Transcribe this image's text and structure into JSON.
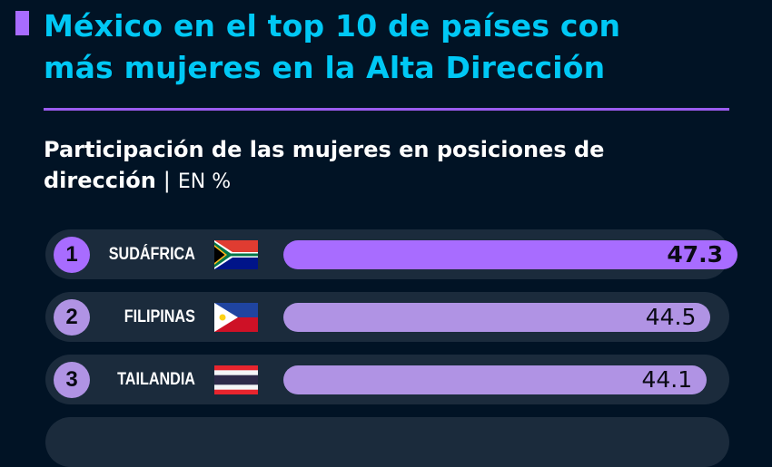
{
  "header": {
    "title_line1": "México en el top 10 de países con",
    "title_line2": "más mujeres en la Alta Dirección",
    "subtitle_line1": "Participación de las mujeres en posiciones de",
    "subtitle_line2": "dirección",
    "separator": "|",
    "unit": "EN %"
  },
  "colors": {
    "background": "#011325",
    "title": "#00c8f5",
    "accent": "#a86cff",
    "bar_highlight": "#a86cff",
    "bar": "#b093e4",
    "row": "#1b2b3c"
  },
  "chart_data": {
    "type": "bar",
    "orientation": "horizontal",
    "title": "Participación de las mujeres en posiciones de dirección",
    "unit": "EN %",
    "xlim": [
      0,
      47.3
    ],
    "ranks": [
      "1",
      "2",
      "3"
    ],
    "categories": [
      "SUDÁFRICA",
      "FILIPINAS",
      "TAILANDIA"
    ],
    "flags": [
      "south-africa-flag",
      "philippines-flag",
      "thailand-flag"
    ],
    "values": [
      47.3,
      44.5,
      44.1
    ],
    "value_labels": [
      "47.3",
      "44.5",
      "44.1"
    ]
  }
}
